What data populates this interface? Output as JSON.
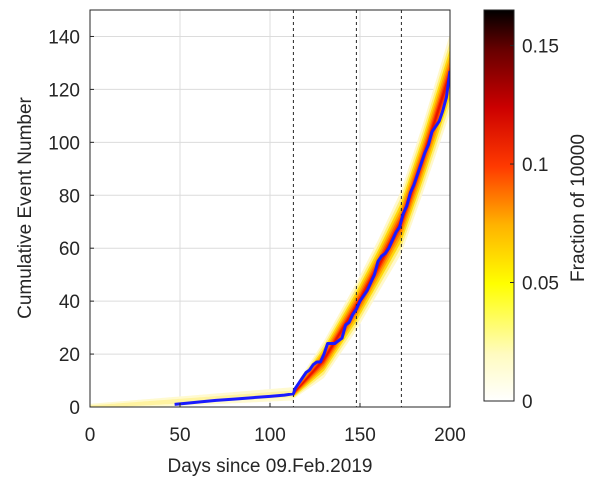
{
  "chart_data": {
    "type": "line",
    "xlabel": "Days since 09.Feb.2019",
    "ylabel": "Cumulative Event Number",
    "xlim": [
      0,
      200
    ],
    "ylim": [
      0,
      150
    ],
    "xticks": [
      0,
      50,
      100,
      150,
      200
    ],
    "yticks": [
      0,
      20,
      40,
      60,
      80,
      100,
      120,
      140
    ],
    "grid": true,
    "vertical_markers": [
      113,
      148,
      173
    ],
    "series": [
      {
        "color": "#1a1aff",
        "x": [
          47,
          55,
          62,
          70,
          80,
          90,
          100,
          108,
          113,
          114,
          116,
          118,
          120,
          122,
          124,
          126,
          128,
          130,
          132,
          134,
          136,
          138,
          140,
          142,
          144,
          146,
          148,
          150,
          152,
          154,
          156,
          158,
          160,
          162,
          164,
          166,
          168,
          170,
          172,
          174,
          176,
          178,
          180,
          182,
          184,
          186,
          188,
          190,
          192,
          194,
          196,
          198,
          200
        ],
        "y": [
          1,
          1.5,
          2,
          2.5,
          3,
          3.5,
          4,
          4.5,
          5,
          7,
          9,
          11,
          13,
          14,
          16,
          17,
          17,
          20,
          24,
          24,
          24,
          25,
          26,
          31,
          32,
          35,
          37,
          40,
          42,
          44,
          47,
          50,
          55,
          57,
          58,
          60,
          63,
          66,
          68,
          73,
          76,
          81,
          84,
          88,
          92,
          96,
          99,
          104,
          106,
          108,
          112,
          117,
          127
        ]
      }
    ],
    "heatmap": {
      "description_free": true,
      "pre_band": {
        "x": [
          0,
          113
        ],
        "y_center": [
          0,
          5
        ],
        "width": [
          1.2,
          2.5
        ]
      },
      "post_band": {
        "x": [
          113,
          130,
          148,
          160,
          173,
          185,
          200
        ],
        "y_center": [
          5,
          18,
          38,
          53,
          70,
          94,
          126
        ],
        "width": [
          2,
          7,
          9,
          10,
          12,
          13,
          15
        ]
      }
    },
    "colorbar": {
      "label": "Fraction of 10000",
      "range": [
        0,
        0.165
      ],
      "ticks": [
        0,
        0.05,
        0.1,
        0.15
      ],
      "tick_labels": [
        "0",
        "0.05",
        "0.1",
        "0.15"
      ],
      "colormap": "hot-reversed"
    }
  }
}
